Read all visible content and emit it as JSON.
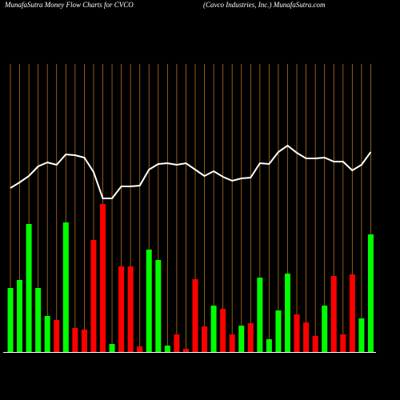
{
  "chart_data": {
    "type": "money-flow",
    "title": "MunafaSutra  Money Flow  Charts for CVCO",
    "subtitle": "(Cavco  Industries,  Inc.) MunafaSutra.com",
    "series": [
      {
        "name": "Money Flow",
        "colors": [
          "#00ff00",
          "#00ff00",
          "#00ff00",
          "#00ff00",
          "#00ff00",
          "#ff0000",
          "#00ff00",
          "#ff0000",
          "#ff0000",
          "#ff0000",
          "#ff0000",
          "#00ff00",
          "#ff0000",
          "#ff0000",
          "#ff0000",
          "#00ff00",
          "#00ff00",
          "#00ff00",
          "#ff0000",
          "#ff0000",
          "#ff0000",
          "#ff0000",
          "#00ff00",
          "#ff0000",
          "#ff0000",
          "#00ff00",
          "#ff0000",
          "#00ff00",
          "#00ff00",
          "#00ff00",
          "#00ff00",
          "#ff0000",
          "#ff0000",
          "#ff0000",
          "#00ff00",
          "#ff0000",
          "#ff0000",
          "#ff0000",
          "#00ff00",
          "#00ff00"
        ],
        "values": [
          80,
          90,
          160,
          80,
          45,
          40,
          162,
          30,
          28,
          140,
          185,
          10,
          107,
          107,
          7,
          128,
          115,
          8,
          22,
          4,
          91,
          32,
          58,
          54,
          22,
          33,
          36,
          93,
          16,
          52,
          98,
          47,
          37,
          20,
          58,
          95,
          22,
          97,
          42,
          147
        ]
      },
      {
        "name": "Price",
        "color": "#ffffff",
        "values": [
          205,
          212,
          220,
          232,
          237,
          234,
          247,
          246,
          243,
          225,
          192,
          192,
          207,
          207,
          208,
          228,
          235,
          236,
          234,
          236,
          228,
          220,
          226,
          219,
          214,
          217,
          218,
          236,
          235,
          250,
          258,
          249,
          242,
          242,
          243,
          238,
          238,
          227,
          234,
          250
        ]
      }
    ]
  }
}
